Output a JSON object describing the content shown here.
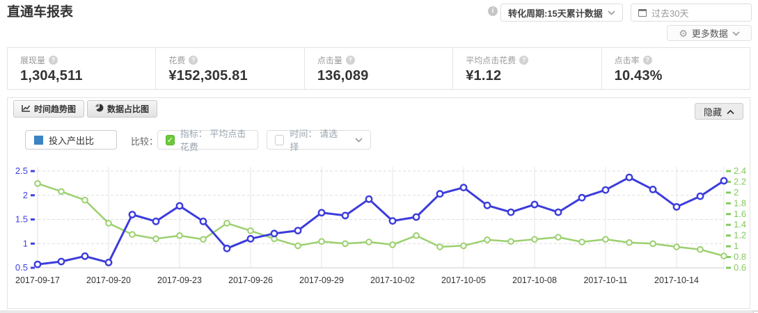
{
  "page": {
    "title": "直通车报表"
  },
  "header": {
    "conversion_dropdown": "转化周期:15天累计数据",
    "date_range": "过去30天",
    "more_data": "更多数据"
  },
  "metrics": [
    {
      "label": "展现量",
      "value": "1,304,511"
    },
    {
      "label": "花费",
      "value": "¥152,305.81"
    },
    {
      "label": "点击量",
      "value": "136,089"
    },
    {
      "label": "平均点击花费",
      "value": "¥1.12"
    },
    {
      "label": "点击率",
      "value": "10.43%"
    }
  ],
  "chart_panel": {
    "tabs": [
      {
        "label": "时间趋势图"
      },
      {
        "label": "数据占比图"
      }
    ],
    "hide_button": "隐藏",
    "legend_primary": "投入产出比",
    "compare_label": "比较：",
    "metric_checkbox": "指标： 平均点击花费",
    "time_checkbox": "时间： 请选择"
  },
  "colors": {
    "roi_line": "#3c3cdc",
    "cpc_line": "#9bd06f",
    "left_axis_label": "#4040e2",
    "right_axis_label": "#85c95f",
    "legend_swatch": "#3c83c4",
    "checkbox_green": "#6bc839",
    "grid": "#dcdcdc",
    "axis": "#cccccc"
  },
  "chart_data": {
    "type": "line",
    "x": [
      "2017-09-17",
      "2017-09-18",
      "2017-09-19",
      "2017-09-20",
      "2017-09-21",
      "2017-09-22",
      "2017-09-23",
      "2017-09-24",
      "2017-09-25",
      "2017-09-26",
      "2017-09-27",
      "2017-09-28",
      "2017-09-29",
      "2017-09-30",
      "2017-10-01",
      "2017-10-02",
      "2017-10-03",
      "2017-10-04",
      "2017-10-05",
      "2017-10-06",
      "2017-10-07",
      "2017-10-08",
      "2017-10-09",
      "2017-10-10",
      "2017-10-11",
      "2017-10-12",
      "2017-10-13",
      "2017-10-14",
      "2017-10-15",
      "2017-10-16"
    ],
    "x_label_every": 3,
    "left_axis": {
      "name": "投入产出比",
      "min": 0.5,
      "max": 2.5,
      "ticks": [
        0.5,
        1,
        1.5,
        2,
        2.5
      ],
      "color": "#4040e2"
    },
    "right_axis": {
      "name": "平均点击花费",
      "min": 0.6,
      "max": 2.4,
      "ticks": [
        0.6,
        0.8,
        1,
        1.2,
        1.4,
        1.6,
        1.8,
        2,
        2.2,
        2.4
      ],
      "color": "#85c95f"
    },
    "series": [
      {
        "name": "投入产出比",
        "axis": "left",
        "color": "#3c3cdc",
        "values": [
          0.57,
          0.63,
          0.74,
          0.61,
          1.6,
          1.46,
          1.78,
          1.46,
          0.9,
          1.1,
          1.21,
          1.27,
          1.64,
          1.58,
          1.92,
          1.47,
          1.55,
          2.03,
          2.16,
          1.79,
          1.65,
          1.81,
          1.65,
          1.95,
          2.11,
          2.37,
          2.12,
          1.76,
          1.98,
          2.3
        ]
      },
      {
        "name": "平均点击花费",
        "axis": "right",
        "color": "#9bd06f",
        "values": [
          2.17,
          2.02,
          1.86,
          1.43,
          1.22,
          1.14,
          1.2,
          1.13,
          1.43,
          1.29,
          1.14,
          1.01,
          1.09,
          1.05,
          1.08,
          1.03,
          1.2,
          0.99,
          1.01,
          1.12,
          1.09,
          1.13,
          1.17,
          1.08,
          1.13,
          1.07,
          1.05,
          0.99,
          0.94,
          0.82
        ]
      }
    ],
    "grid": {
      "horizontal": "dashed",
      "vertical_at_labeled_dates": true
    },
    "legend_position": "top-left"
  }
}
